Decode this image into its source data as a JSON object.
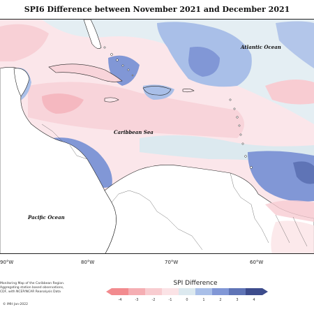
{
  "title": "SPI6 Difference between November 2021 and December 2021",
  "labels": {
    "atlantic": "Atlantic Ocean",
    "caribbean": "Caribbean Sea",
    "pacific": "Pacific Ocean"
  },
  "longitude_ticks": [
    "90°W",
    "80°W",
    "70°W",
    "60°W"
  ],
  "legend": {
    "title": "SPI Difference",
    "ticks": [
      "-4",
      "-3",
      "-2",
      "-1",
      "0",
      "1",
      "2",
      "3",
      "4"
    ],
    "colors": [
      "#f28b8f",
      "#f5aeb3",
      "#f8ccd0",
      "#fbe3e6",
      "#dce9ef",
      "#a9bfe8",
      "#8197d6",
      "#5f74b6",
      "#3d4c8c"
    ]
  },
  "note_lines": [
    "Monitoring Map of the Caribbean Region.",
    "Aggregating station based observations,",
    "CDF, with NCEP/NCAR Reanalysis Data"
  ],
  "copyright": "© IMH  Jan-2022"
}
